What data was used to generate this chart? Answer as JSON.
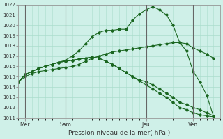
{
  "xlabel": "Pression niveau de la mer( hPa )",
  "bg_color": "#cff0e8",
  "grid_color": "#aaddcc",
  "line_color": "#1a6620",
  "ylim": [
    1011,
    1022
  ],
  "yticks": [
    1011,
    1012,
    1013,
    1014,
    1015,
    1016,
    1017,
    1018,
    1019,
    1020,
    1021,
    1022
  ],
  "xlim": [
    0,
    30
  ],
  "day_positions": [
    1,
    7,
    19,
    26
  ],
  "day_labels": [
    "Mer",
    "Sam",
    "Jeu",
    "Ven"
  ],
  "line_peak": [
    1014.5,
    1015.2,
    1015.5,
    1015.8,
    1016.0,
    1016.2,
    1016.4,
    1016.6,
    1017.0,
    1017.5,
    1018.2,
    1018.9,
    1019.3,
    1019.5,
    1019.5,
    1019.6,
    1019.6,
    1020.5,
    1021.1,
    1021.5,
    1021.8,
    1021.5,
    1021.0,
    1020.0,
    1018.3,
    1017.5,
    1015.5,
    1014.5,
    1013.2,
    1011.2
  ],
  "line_flat_up": [
    1014.5,
    1015.0,
    1015.3,
    1015.5,
    1015.6,
    1015.7,
    1015.8,
    1015.9,
    1016.0,
    1016.2,
    1016.5,
    1016.8,
    1017.0,
    1017.2,
    1017.4,
    1017.5,
    1017.6,
    1017.7,
    1017.8,
    1017.9,
    1018.0,
    1018.1,
    1018.2,
    1018.3,
    1018.3,
    1018.2,
    1017.8,
    1017.5,
    1017.2,
    1016.8
  ],
  "line_fall1": [
    1014.5,
    1015.2,
    1015.5,
    1015.8,
    1016.0,
    1016.2,
    1016.4,
    1016.5,
    1016.6,
    1016.7,
    1016.8,
    1016.9,
    1016.8,
    1016.5,
    1016.2,
    1015.8,
    1015.4,
    1015.0,
    1014.6,
    1014.2,
    1013.8,
    1013.4,
    1013.0,
    1012.5,
    1012.0,
    1011.8,
    1011.5,
    1011.3,
    1011.2,
    1011.1
  ],
  "line_fall2": [
    1014.5,
    1015.2,
    1015.5,
    1015.8,
    1016.0,
    1016.2,
    1016.4,
    1016.5,
    1016.6,
    1016.7,
    1016.8,
    1016.9,
    1016.8,
    1016.5,
    1016.2,
    1015.8,
    1015.4,
    1015.0,
    1014.7,
    1014.5,
    1014.2,
    1013.8,
    1013.4,
    1013.0,
    1012.5,
    1012.3,
    1012.0,
    1011.8,
    1011.5,
    1011.2
  ]
}
